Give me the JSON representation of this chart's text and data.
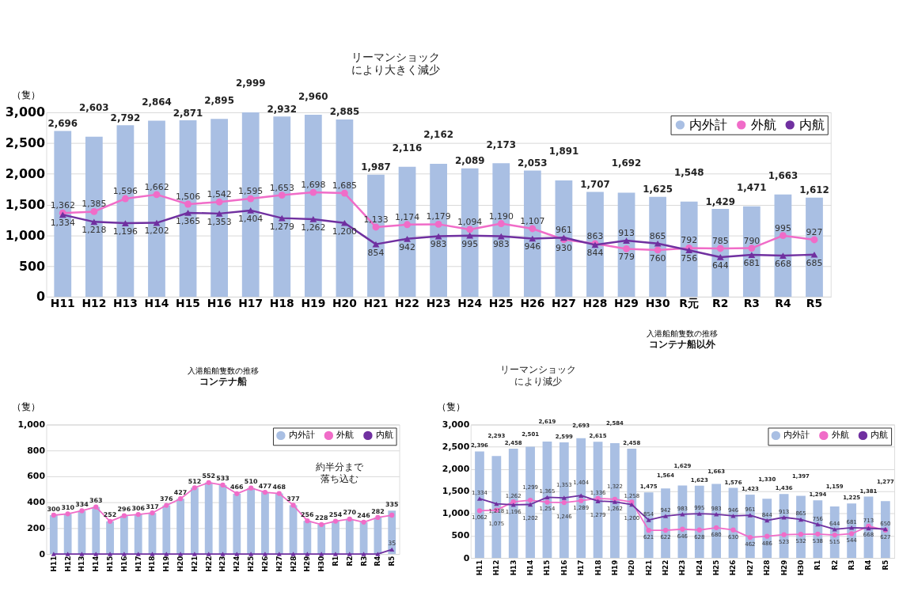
{
  "chart_data": [
    {
      "type": "bar",
      "ylabel": "（隻）",
      "categories": [
        "H11",
        "H12",
        "H13",
        "H14",
        "H15",
        "H16",
        "H17",
        "H18",
        "H19",
        "H20",
        "H21",
        "H22",
        "H23",
        "H24",
        "H25",
        "H26",
        "H27",
        "H28",
        "H29",
        "H30",
        "R元",
        "R2",
        "R3",
        "R4",
        "R5"
      ],
      "ylim": [
        0,
        3000
      ],
      "yticks": [
        0,
        500,
        {
          "value": 1000,
          "label": "1,000"
        },
        {
          "value": 1500,
          "label": "1,500"
        },
        {
          "value": 2000,
          "label": "2,000"
        },
        {
          "value": 2500,
          "label": "2,500"
        },
        {
          "value": 3000,
          "label": "3,000"
        }
      ],
      "grid": "y",
      "legend": "top right",
      "annotations": [
        "リーマンショックにより大きく減少"
      ],
      "series": [
        {
          "name": "内外計",
          "color": "#a9bfe3",
          "values": [
            2696,
            2603,
            2792,
            2864,
            2871,
            2895,
            2999,
            2932,
            2960,
            2885,
            1987,
            2116,
            2162,
            2089,
            2173,
            2053,
            1891,
            1707,
            1692,
            1625,
            1548,
            1429,
            1471,
            1663,
            1612
          ],
          "value_labels": [
            "2,696",
            "2,603",
            "2,792",
            "2,864",
            "2,871",
            "2,895",
            "2,999",
            "2,932",
            "2,960",
            "2,885",
            "1,987",
            "2,116",
            "2,162",
            "2,089",
            "2,173",
            "2,053",
            "1,891",
            "1,707",
            "1,692",
            "1,625",
            "1,548",
            "1,429",
            "1,471",
            "1,663",
            "1,612"
          ]
        },
        {
          "name": "外航",
          "type": "line",
          "color": "#f06cc8",
          "marker": "circle",
          "line_style": "solid",
          "values": [
            1362,
            1385,
            1596,
            1662,
            1506,
            1542,
            1595,
            1653,
            1698,
            1685,
            1133,
            1174,
            1179,
            1094,
            1190,
            1107,
            930,
            863,
            779,
            760,
            792,
            785,
            790,
            995,
            927
          ],
          "value_labels": [
            "1,362",
            "1,385",
            "1,596",
            "1,662",
            "1,506",
            "1,542",
            "1,595",
            "1,653",
            "1,698",
            "1,685",
            "1,133",
            "1,174",
            "1,179",
            "1,094",
            "1,190",
            "1,107",
            "930",
            "863",
            "779",
            "760",
            "792",
            "785",
            "790",
            "995",
            "927"
          ]
        },
        {
          "name": "内航",
          "type": "line",
          "color": "#7030a0",
          "marker": "triangle",
          "line_style": "solid",
          "values": [
            1334,
            1218,
            1196,
            1202,
            1365,
            1353,
            1404,
            1279,
            1262,
            1200,
            854,
            942,
            983,
            995,
            983,
            946,
            961,
            844,
            913,
            865,
            756,
            644,
            681,
            668,
            685
          ],
          "value_labels": [
            "1,334",
            "1,218",
            "1,196",
            "1,202",
            "1,365",
            "1,353",
            "1,404",
            "1,279",
            "1,262",
            "1,200",
            "854",
            "942",
            "983",
            "995",
            "983",
            "946",
            "961",
            "844",
            "913",
            "865",
            "756",
            "644",
            "681",
            "668",
            "685"
          ]
        }
      ]
    },
    {
      "type": "bar",
      "title": "入港船舶隻数の推移",
      "subtitle": "コンテナ船",
      "ylabel": "（隻）",
      "categories": [
        "H11",
        "H12",
        "H13",
        "H14",
        "H15",
        "H16",
        "H17",
        "H18",
        "H19",
        "H20",
        "H21",
        "H22",
        "H23",
        "H24",
        "H25",
        "H26",
        "H27",
        "H28",
        "H29",
        "H30",
        "R1",
        "R2",
        "R3",
        "R4",
        "R5"
      ],
      "ylim": [
        0,
        1000
      ],
      "yticks": [
        0,
        200,
        400,
        600,
        800,
        {
          "value": 1000,
          "label": "1,000"
        }
      ],
      "grid": "y",
      "legend": "top right",
      "annotations": [
        "約半分まで落ち込む"
      ],
      "series": [
        {
          "name": "内外計",
          "color": "#a9bfe3",
          "values": [
            300,
            310,
            334,
            363,
            252,
            296,
            306,
            317,
            376,
            427,
            512,
            552,
            533,
            466,
            510,
            477,
            468,
            377,
            256,
            228,
            254,
            270,
            246,
            282,
            335
          ],
          "value_labels": [
            "300",
            "310",
            "334",
            "363",
            "252",
            "296",
            "306",
            "317",
            "376",
            "427",
            "512",
            "552",
            "533",
            "466",
            "510",
            "477",
            "468",
            "377",
            "256",
            "228",
            "254",
            "270",
            "246",
            "282",
            "335"
          ]
        },
        {
          "name": "外航",
          "type": "line",
          "color": "#f06cc8",
          "marker": "circle",
          "line_style": "solid",
          "values": [
            300,
            310,
            334,
            363,
            252,
            296,
            306,
            317,
            376,
            427,
            512,
            552,
            533,
            466,
            510,
            477,
            468,
            377,
            256,
            228,
            254,
            270,
            246,
            282,
            300
          ]
        },
        {
          "name": "内航",
          "type": "line",
          "color": "#7030a0",
          "marker": "triangle",
          "line_style": "solid",
          "values": [
            0,
            0,
            0,
            0,
            0,
            0,
            0,
            0,
            0,
            0,
            0,
            0,
            0,
            0,
            0,
            0,
            0,
            0,
            0,
            0,
            0,
            0,
            0,
            0,
            35
          ],
          "value_labels": [
            null,
            null,
            null,
            null,
            null,
            null,
            null,
            null,
            null,
            null,
            null,
            null,
            null,
            null,
            null,
            null,
            null,
            null,
            null,
            null,
            null,
            null,
            null,
            null,
            "35"
          ]
        }
      ]
    },
    {
      "type": "bar",
      "title": "入港船舶隻数の推移",
      "subtitle": "コンテナ船以外",
      "ylabel": "（隻）",
      "categories": [
        "H11",
        "H12",
        "H13",
        "H14",
        "H15",
        "H16",
        "H17",
        "H18",
        "H19",
        "H20",
        "H21",
        "H22",
        "H23",
        "H24",
        "H25",
        "H26",
        "H27",
        "H28",
        "H29",
        "H30",
        "R1",
        "R2",
        "R3",
        "R4",
        "R5"
      ],
      "ylim": [
        0,
        3000
      ],
      "yticks": [
        0,
        500,
        {
          "value": 1000,
          "label": "1,000"
        },
        {
          "value": 1500,
          "label": "1,500"
        },
        {
          "value": 2000,
          "label": "2,000"
        },
        {
          "value": 2500,
          "label": "2,500"
        },
        {
          "value": 3000,
          "label": "3,000"
        }
      ],
      "grid": "y",
      "legend": "top right",
      "annotations": [
        "リーマンショックにより減少"
      ],
      "series": [
        {
          "name": "内外計",
          "color": "#a9bfe3",
          "values": [
            2396,
            2293,
            2458,
            2501,
            2619,
            2599,
            2693,
            2615,
            2584,
            2458,
            1475,
            1564,
            1629,
            1623,
            1663,
            1576,
            1423,
            1330,
            1436,
            1397,
            1294,
            1159,
            1225,
            1381,
            1277
          ],
          "value_labels": [
            "2,396",
            "2,293",
            "2,458",
            "2,501",
            "2,619",
            "2,599",
            "2,693",
            "2,615",
            "2,584",
            "2,458",
            "1,475",
            "1,564",
            "1,629",
            "1,623",
            "1,663",
            "1,576",
            "1,423",
            "1,330",
            "1,436",
            "1,397",
            "1,294",
            "1,159",
            "1,225",
            "1,381",
            "1,277"
          ]
        },
        {
          "name": "外航",
          "type": "line",
          "color": "#f06cc8",
          "marker": "circle",
          "line_style": "solid",
          "values": [
            1062,
            1075,
            1262,
            1299,
            1254,
            1246,
            1289,
            1336,
            1322,
            1258,
            621,
            622,
            646,
            628,
            680,
            630,
            462,
            486,
            523,
            532,
            538,
            515,
            544,
            713,
            627
          ],
          "value_labels": [
            "1,062",
            "1,075",
            "1,262",
            "1,299",
            "1,254",
            "1,246",
            "1,289",
            "1,336",
            "1,322",
            "1,258",
            "621",
            "622",
            "646",
            "628",
            "680",
            "630",
            "462",
            "486",
            "523",
            "532",
            "538",
            "515",
            "544",
            "713",
            "627"
          ]
        },
        {
          "name": "内航",
          "type": "line",
          "color": "#7030a0",
          "marker": "triangle",
          "line_style": "solid",
          "values": [
            1334,
            1218,
            1196,
            1202,
            1365,
            1353,
            1404,
            1279,
            1262,
            1200,
            854,
            942,
            983,
            995,
            983,
            946,
            961,
            844,
            913,
            865,
            756,
            644,
            681,
            668,
            650
          ],
          "value_labels": [
            "1,334",
            "1,218",
            "1,196",
            "1,202",
            "1,365",
            "1,353",
            "1,404",
            "1,279",
            "1,262",
            "1,200",
            "854",
            "942",
            "983",
            "995",
            "983",
            "946",
            "961",
            "844",
            "913",
            "865",
            "756",
            "644",
            "681",
            "668",
            "650"
          ]
        }
      ]
    }
  ]
}
